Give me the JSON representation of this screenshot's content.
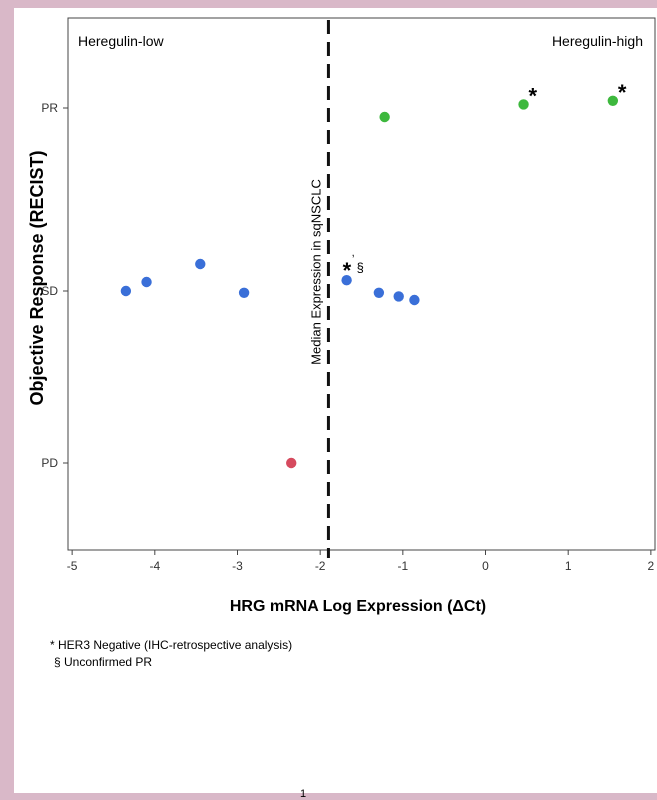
{
  "chart_data": {
    "type": "scatter",
    "xlabel": "HRG mRNA Log Expression (ΔCt)",
    "ylabel": "Objective Response (RECIST)",
    "x_ticks": [
      -5,
      -4,
      -3,
      -2,
      -1,
      0,
      1,
      2
    ],
    "xlim": [
      -5.05,
      2.05
    ],
    "y_categories": [
      "PR",
      "SD",
      "PD"
    ],
    "region_labels": {
      "left": "Heregulin-low",
      "right": "Heregulin-high"
    },
    "median_line": {
      "x": -1.9,
      "label": "Median Expression in sqNSCLC"
    },
    "series": [
      {
        "response": "PR",
        "color": "#3db83d",
        "points": [
          {
            "x": -1.22,
            "y_offset": -0.05,
            "mark": ""
          },
          {
            "x": 0.46,
            "y_offset": 0.02,
            "mark": "*"
          },
          {
            "x": 1.54,
            "y_offset": 0.04,
            "mark": "*"
          }
        ]
      },
      {
        "response": "SD",
        "color": "#3a6fd8",
        "points": [
          {
            "x": -4.35,
            "y_offset": 0.0,
            "mark": ""
          },
          {
            "x": -4.1,
            "y_offset": 0.05,
            "mark": ""
          },
          {
            "x": -3.45,
            "y_offset": 0.15,
            "mark": ""
          },
          {
            "x": -2.92,
            "y_offset": -0.01,
            "mark": ""
          },
          {
            "x": -1.68,
            "y_offset": 0.06,
            "mark": "*,§"
          },
          {
            "x": -1.29,
            "y_offset": -0.01,
            "mark": ""
          },
          {
            "x": -1.05,
            "y_offset": -0.03,
            "mark": ""
          },
          {
            "x": -0.86,
            "y_offset": -0.05,
            "mark": ""
          }
        ]
      },
      {
        "response": "PD",
        "color": "#d64a5e",
        "points": [
          {
            "x": -2.35,
            "y_offset": 0.0,
            "mark": ""
          }
        ]
      }
    ]
  },
  "footnotes": [
    "* HER3 Negative (IHC-retrospective analysis)",
    "§ Unconfirmed PR"
  ],
  "page_number": "1"
}
